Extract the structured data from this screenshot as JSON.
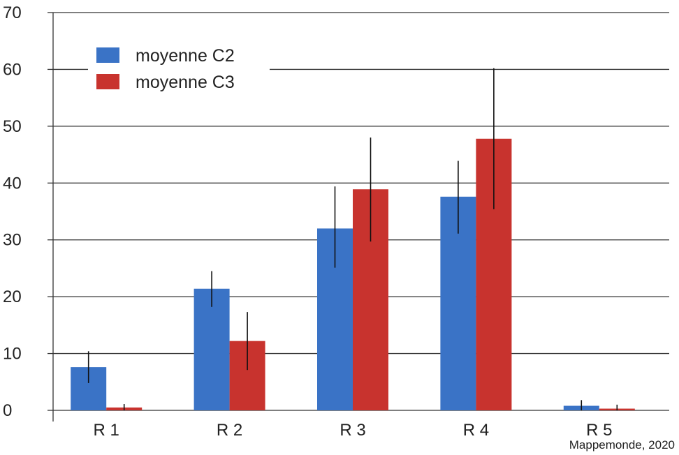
{
  "chart_data": {
    "type": "bar",
    "title": "",
    "xlabel": "",
    "ylabel": "",
    "categories": [
      "R 1",
      "R 2",
      "R 3",
      "R 4",
      "R 5"
    ],
    "ylim": [
      0,
      70
    ],
    "yticks": [
      0,
      10,
      20,
      30,
      40,
      50,
      60,
      70
    ],
    "grid": true,
    "legend_position": "top-left",
    "series": [
      {
        "name": "moyenne C2",
        "color": "#3a73c6",
        "values": [
          7.6,
          21.4,
          32.0,
          37.6,
          0.8
        ],
        "error_low": [
          4.8,
          18.2,
          25.1,
          31.1,
          0.0
        ],
        "error_high": [
          10.4,
          24.5,
          39.4,
          43.9,
          1.8
        ]
      },
      {
        "name": "moyenne C3",
        "color": "#c8332e",
        "values": [
          0.5,
          12.2,
          38.9,
          47.8,
          0.3
        ],
        "error_low": [
          0.0,
          7.1,
          29.7,
          35.4,
          0.0
        ],
        "error_high": [
          1.1,
          17.3,
          48.0,
          60.2,
          1.0
        ]
      }
    ],
    "annotation": "Mappemonde, 2020"
  }
}
